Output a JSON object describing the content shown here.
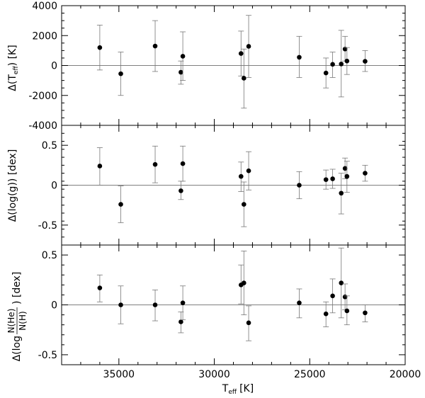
{
  "chart_data": {
    "type": "scatter",
    "x_axis": {
      "label": "T",
      "label_sub": "eff",
      "label_unit": "[K]",
      "range": [
        38000,
        20000
      ],
      "ticks": [
        35000,
        30000,
        25000,
        20000
      ],
      "tick_labels": [
        "35000",
        "30000",
        "25000",
        "20000"
      ]
    },
    "panels": [
      {
        "id": "teff",
        "ylabel": "Δ(T",
        "ylabel_sub": "eff",
        "ylabel_rest": ") [K]",
        "ylim": [
          -4000,
          4000
        ],
        "yticks": [
          4000,
          2000,
          0,
          -2000,
          -4000
        ],
        "ytick_labels": [
          "4000",
          "2000",
          "0",
          "-2000",
          "-4000"
        ],
        "points": [
          {
            "x": 36000,
            "y": 1200,
            "lo": -300,
            "hi": 2700
          },
          {
            "x": 34900,
            "y": -550,
            "lo": -2000,
            "hi": 900
          },
          {
            "x": 33100,
            "y": 1300,
            "lo": -400,
            "hi": 3000
          },
          {
            "x": 31750,
            "y": -450,
            "lo": -1250,
            "hi": 300
          },
          {
            "x": 31650,
            "y": 620,
            "lo": -1000,
            "hi": 2250
          },
          {
            "x": 28600,
            "y": 800,
            "lo": -700,
            "hi": 2300
          },
          {
            "x": 28450,
            "y": -850,
            "lo": -2850,
            "hi": 1100
          },
          {
            "x": 28200,
            "y": 1280,
            "lo": -800,
            "hi": 3350
          },
          {
            "x": 25550,
            "y": 550,
            "lo": -800,
            "hi": 1950
          },
          {
            "x": 24150,
            "y": -500,
            "lo": -1500,
            "hi": 500
          },
          {
            "x": 23800,
            "y": 80,
            "lo": -800,
            "hi": 900
          },
          {
            "x": 23350,
            "y": 100,
            "lo": -2100,
            "hi": 2350
          },
          {
            "x": 23150,
            "y": 1100,
            "lo": 300,
            "hi": 1950
          },
          {
            "x": 23050,
            "y": 300,
            "lo": -600,
            "hi": 1200
          },
          {
            "x": 22100,
            "y": 280,
            "lo": -400,
            "hi": 1000
          }
        ]
      },
      {
        "id": "logg",
        "ylabel": "Δ(log(g)) [dex]",
        "ylim": [
          -0.75,
          0.75
        ],
        "yticks": [
          0.5,
          0,
          -0.5
        ],
        "ytick_labels": [
          "0.5",
          "0",
          "-0.5"
        ],
        "points": [
          {
            "x": 36000,
            "y": 0.24,
            "lo": 0.0,
            "hi": 0.47
          },
          {
            "x": 34900,
            "y": -0.24,
            "lo": -0.47,
            "hi": -0.01
          },
          {
            "x": 33100,
            "y": 0.26,
            "lo": 0.03,
            "hi": 0.49
          },
          {
            "x": 31750,
            "y": -0.07,
            "lo": -0.18,
            "hi": 0.05
          },
          {
            "x": 31650,
            "y": 0.27,
            "lo": 0.05,
            "hi": 0.49
          },
          {
            "x": 28600,
            "y": 0.11,
            "lo": -0.08,
            "hi": 0.29
          },
          {
            "x": 28450,
            "y": -0.24,
            "lo": -0.52,
            "hi": 0.04
          },
          {
            "x": 28200,
            "y": 0.18,
            "lo": -0.06,
            "hi": 0.42
          },
          {
            "x": 25550,
            "y": 0.0,
            "lo": -0.17,
            "hi": 0.17
          },
          {
            "x": 24150,
            "y": 0.07,
            "lo": -0.05,
            "hi": 0.19
          },
          {
            "x": 23800,
            "y": 0.08,
            "lo": -0.04,
            "hi": 0.2
          },
          {
            "x": 23350,
            "y": -0.1,
            "lo": -0.36,
            "hi": 0.15
          },
          {
            "x": 23150,
            "y": 0.21,
            "lo": 0.08,
            "hi": 0.34
          },
          {
            "x": 23050,
            "y": 0.11,
            "lo": -0.09,
            "hi": 0.3
          },
          {
            "x": 22100,
            "y": 0.15,
            "lo": 0.05,
            "hi": 0.25
          }
        ]
      },
      {
        "id": "nhe",
        "ylabel_pre": "Δ(log",
        "ylabel_num": "N(He)",
        "ylabel_den": "N(H)",
        "ylabel_post": ") [dex]",
        "ylim": [
          -0.6,
          0.6
        ],
        "yticks": [
          0.5,
          0,
          -0.5
        ],
        "ytick_labels": [
          "0.5",
          "0",
          "-0.5"
        ],
        "points": [
          {
            "x": 36000,
            "y": 0.17,
            "lo": 0.03,
            "hi": 0.3
          },
          {
            "x": 34900,
            "y": 0.0,
            "lo": -0.19,
            "hi": 0.19
          },
          {
            "x": 33100,
            "y": 0.0,
            "lo": -0.16,
            "hi": 0.15
          },
          {
            "x": 31750,
            "y": -0.17,
            "lo": -0.28,
            "hi": -0.07
          },
          {
            "x": 31650,
            "y": 0.02,
            "lo": -0.15,
            "hi": 0.19
          },
          {
            "x": 28600,
            "y": 0.2,
            "lo": 0.01,
            "hi": 0.4
          },
          {
            "x": 28450,
            "y": 0.22,
            "lo": -0.1,
            "hi": 0.54
          },
          {
            "x": 28200,
            "y": -0.18,
            "lo": -0.36,
            "hi": -0.01
          },
          {
            "x": 25550,
            "y": 0.02,
            "lo": -0.13,
            "hi": 0.16
          },
          {
            "x": 24150,
            "y": -0.09,
            "lo": -0.22,
            "hi": 0.03
          },
          {
            "x": 23800,
            "y": 0.09,
            "lo": -0.08,
            "hi": 0.26
          },
          {
            "x": 23350,
            "y": 0.22,
            "lo": -0.13,
            "hi": 0.57
          },
          {
            "x": 23150,
            "y": 0.08,
            "lo": -0.05,
            "hi": 0.21
          },
          {
            "x": 23050,
            "y": -0.06,
            "lo": -0.2,
            "hi": 0.09
          },
          {
            "x": 22100,
            "y": -0.08,
            "lo": -0.17,
            "hi": 0.0
          }
        ]
      }
    ]
  }
}
